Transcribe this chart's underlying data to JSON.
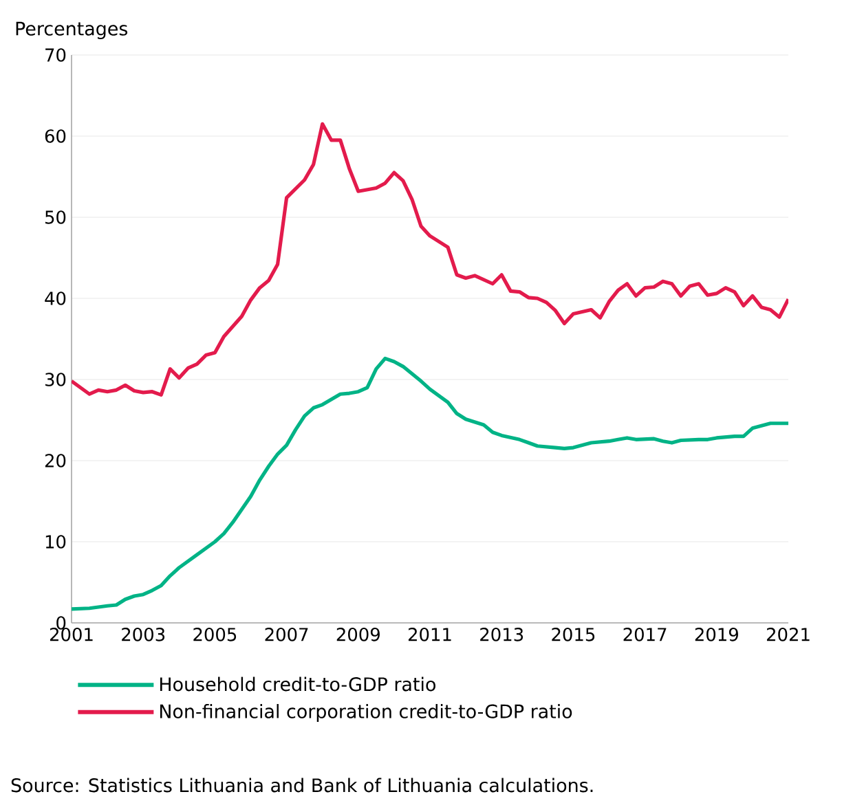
{
  "chart_data": {
    "type": "line",
    "ylabel": "Percentages",
    "xlim": [
      2001,
      2021
    ],
    "xticks": [
      2001,
      2003,
      2005,
      2007,
      2009,
      2011,
      2013,
      2015,
      2017,
      2019,
      2021
    ],
    "ylim": [
      0,
      70
    ],
    "yticks": [
      0,
      10,
      20,
      30,
      40,
      50,
      60,
      70
    ],
    "grid": "y",
    "legend": "bottom",
    "line_style": "solid",
    "marker": "none",
    "series": [
      {
        "name": "Household credit-to-GDP ratio",
        "color": "#00b386",
        "x": [
          2001,
          2001.5,
          2002,
          2002.25,
          2002.5,
          2002.75,
          2003,
          2003.25,
          2003.5,
          2003.75,
          2004,
          2004.5,
          2005,
          2005.25,
          2005.5,
          2005.75,
          2006,
          2006.25,
          2006.5,
          2006.75,
          2007,
          2007.25,
          2007.5,
          2007.75,
          2008,
          2008.5,
          2008.75,
          2009,
          2009.25,
          2009.5,
          2009.75,
          2010,
          2010.25,
          2010.75,
          2011,
          2011.5,
          2011.75,
          2012,
          2012.5,
          2012.75,
          2013,
          2013.5,
          2013.75,
          2014,
          2014.5,
          2014.75,
          2015,
          2015.5,
          2016,
          2016.25,
          2016.5,
          2016.75,
          2017.25,
          2017.5,
          2017.75,
          2018,
          2018.5,
          2018.75,
          2019,
          2019.5,
          2019.75,
          2020,
          2020.5,
          2020.75,
          2021
        ],
        "values": [
          1.7,
          1.8,
          2.1,
          2.2,
          2.9,
          3.3,
          3.5,
          4.0,
          4.6,
          5.8,
          6.8,
          8.4,
          10.0,
          11.0,
          12.4,
          14.0,
          15.6,
          17.6,
          19.3,
          20.8,
          21.9,
          23.8,
          25.5,
          26.5,
          26.9,
          28.2,
          28.3,
          28.5,
          29.0,
          31.3,
          32.6,
          32.2,
          31.6,
          29.8,
          28.8,
          27.2,
          25.8,
          25.1,
          24.4,
          23.5,
          23.1,
          22.6,
          22.2,
          21.8,
          21.6,
          21.5,
          21.6,
          22.2,
          22.4,
          22.6,
          22.8,
          22.6,
          22.7,
          22.4,
          22.2,
          22.5,
          22.6,
          22.6,
          22.8,
          23.0,
          23.0,
          24.0,
          24.6,
          24.6,
          24.6
        ]
      },
      {
        "name": "Non-financial corporation credit-to-GDP ratio",
        "color": "#e31b4c",
        "x": [
          2001,
          2001.5,
          2001.75,
          2002,
          2002.25,
          2002.5,
          2002.75,
          2003,
          2003.25,
          2003.5,
          2003.75,
          2004,
          2004.25,
          2004.5,
          2004.75,
          2005,
          2005.25,
          2005.75,
          2006,
          2006.25,
          2006.5,
          2006.75,
          2007,
          2007.5,
          2007.75,
          2008,
          2008.25,
          2008.5,
          2008.75,
          2009,
          2009.5,
          2009.75,
          2010,
          2010.25,
          2010.5,
          2010.75,
          2011,
          2011.5,
          2011.75,
          2012,
          2012.25,
          2012.75,
          2013,
          2013.25,
          2013.5,
          2013.75,
          2014,
          2014.25,
          2014.5,
          2014.75,
          2015,
          2015.5,
          2015.75,
          2016,
          2016.25,
          2016.5,
          2016.75,
          2017,
          2017.25,
          2017.5,
          2017.75,
          2018,
          2018.25,
          2018.5,
          2018.75,
          2019,
          2019.25,
          2019.5,
          2019.75,
          2020,
          2020.25,
          2020.5,
          2020.75,
          2021
        ],
        "values": [
          29.8,
          28.2,
          28.7,
          28.5,
          28.7,
          29.3,
          28.6,
          28.4,
          28.5,
          28.1,
          31.3,
          30.2,
          31.4,
          31.9,
          33.0,
          33.3,
          35.3,
          37.8,
          39.8,
          41.3,
          42.2,
          44.2,
          52.4,
          54.6,
          56.5,
          61.5,
          59.5,
          59.5,
          56.0,
          53.2,
          53.6,
          54.2,
          55.5,
          54.5,
          52.2,
          48.9,
          47.7,
          46.3,
          42.9,
          42.5,
          42.8,
          41.8,
          42.9,
          40.9,
          40.8,
          40.1,
          40.0,
          39.5,
          38.5,
          36.9,
          38.1,
          38.6,
          37.6,
          39.6,
          41.0,
          41.8,
          40.3,
          41.3,
          41.4,
          42.1,
          41.8,
          40.3,
          41.5,
          41.8,
          40.4,
          40.6,
          41.3,
          40.8,
          39.1,
          40.3,
          38.9,
          38.6,
          37.7,
          39.9
        ]
      }
    ],
    "annotations": [
      "Source: Statistics Lithuania and Bank of Lithuania calculations."
    ]
  }
}
